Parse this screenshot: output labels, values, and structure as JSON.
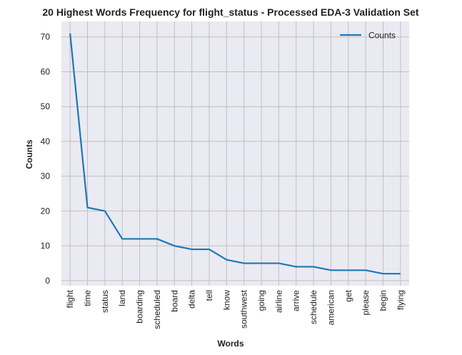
{
  "chart_data": {
    "type": "line",
    "title": "20 Highest Words Frequency for flight_status - Processed EDA-3 Validation Set",
    "xlabel": "Words",
    "ylabel": "Counts",
    "categories": [
      "flight",
      "time",
      "status",
      "land",
      "boarding",
      "scheduled",
      "board",
      "delta",
      "tell",
      "know",
      "southwest",
      "going",
      "airline",
      "arrive",
      "schedule",
      "american",
      "get",
      "please",
      "begin",
      "flying"
    ],
    "series": [
      {
        "name": "Counts",
        "values": [
          71,
          21,
          20,
          12,
          12,
          12,
          10,
          9,
          9,
          6,
          5,
          5,
          5,
          4,
          4,
          3,
          3,
          3,
          2,
          2
        ]
      }
    ],
    "yticks": [
      0,
      10,
      20,
      30,
      40,
      50,
      60,
      70
    ],
    "ylim": [
      -1.45,
      74.45
    ],
    "grid": true,
    "legend_position": "top-right",
    "colors": {
      "line": "#1f77b4",
      "plot_bg": "#eaeaf2",
      "grid": "#c0c0c0"
    }
  }
}
